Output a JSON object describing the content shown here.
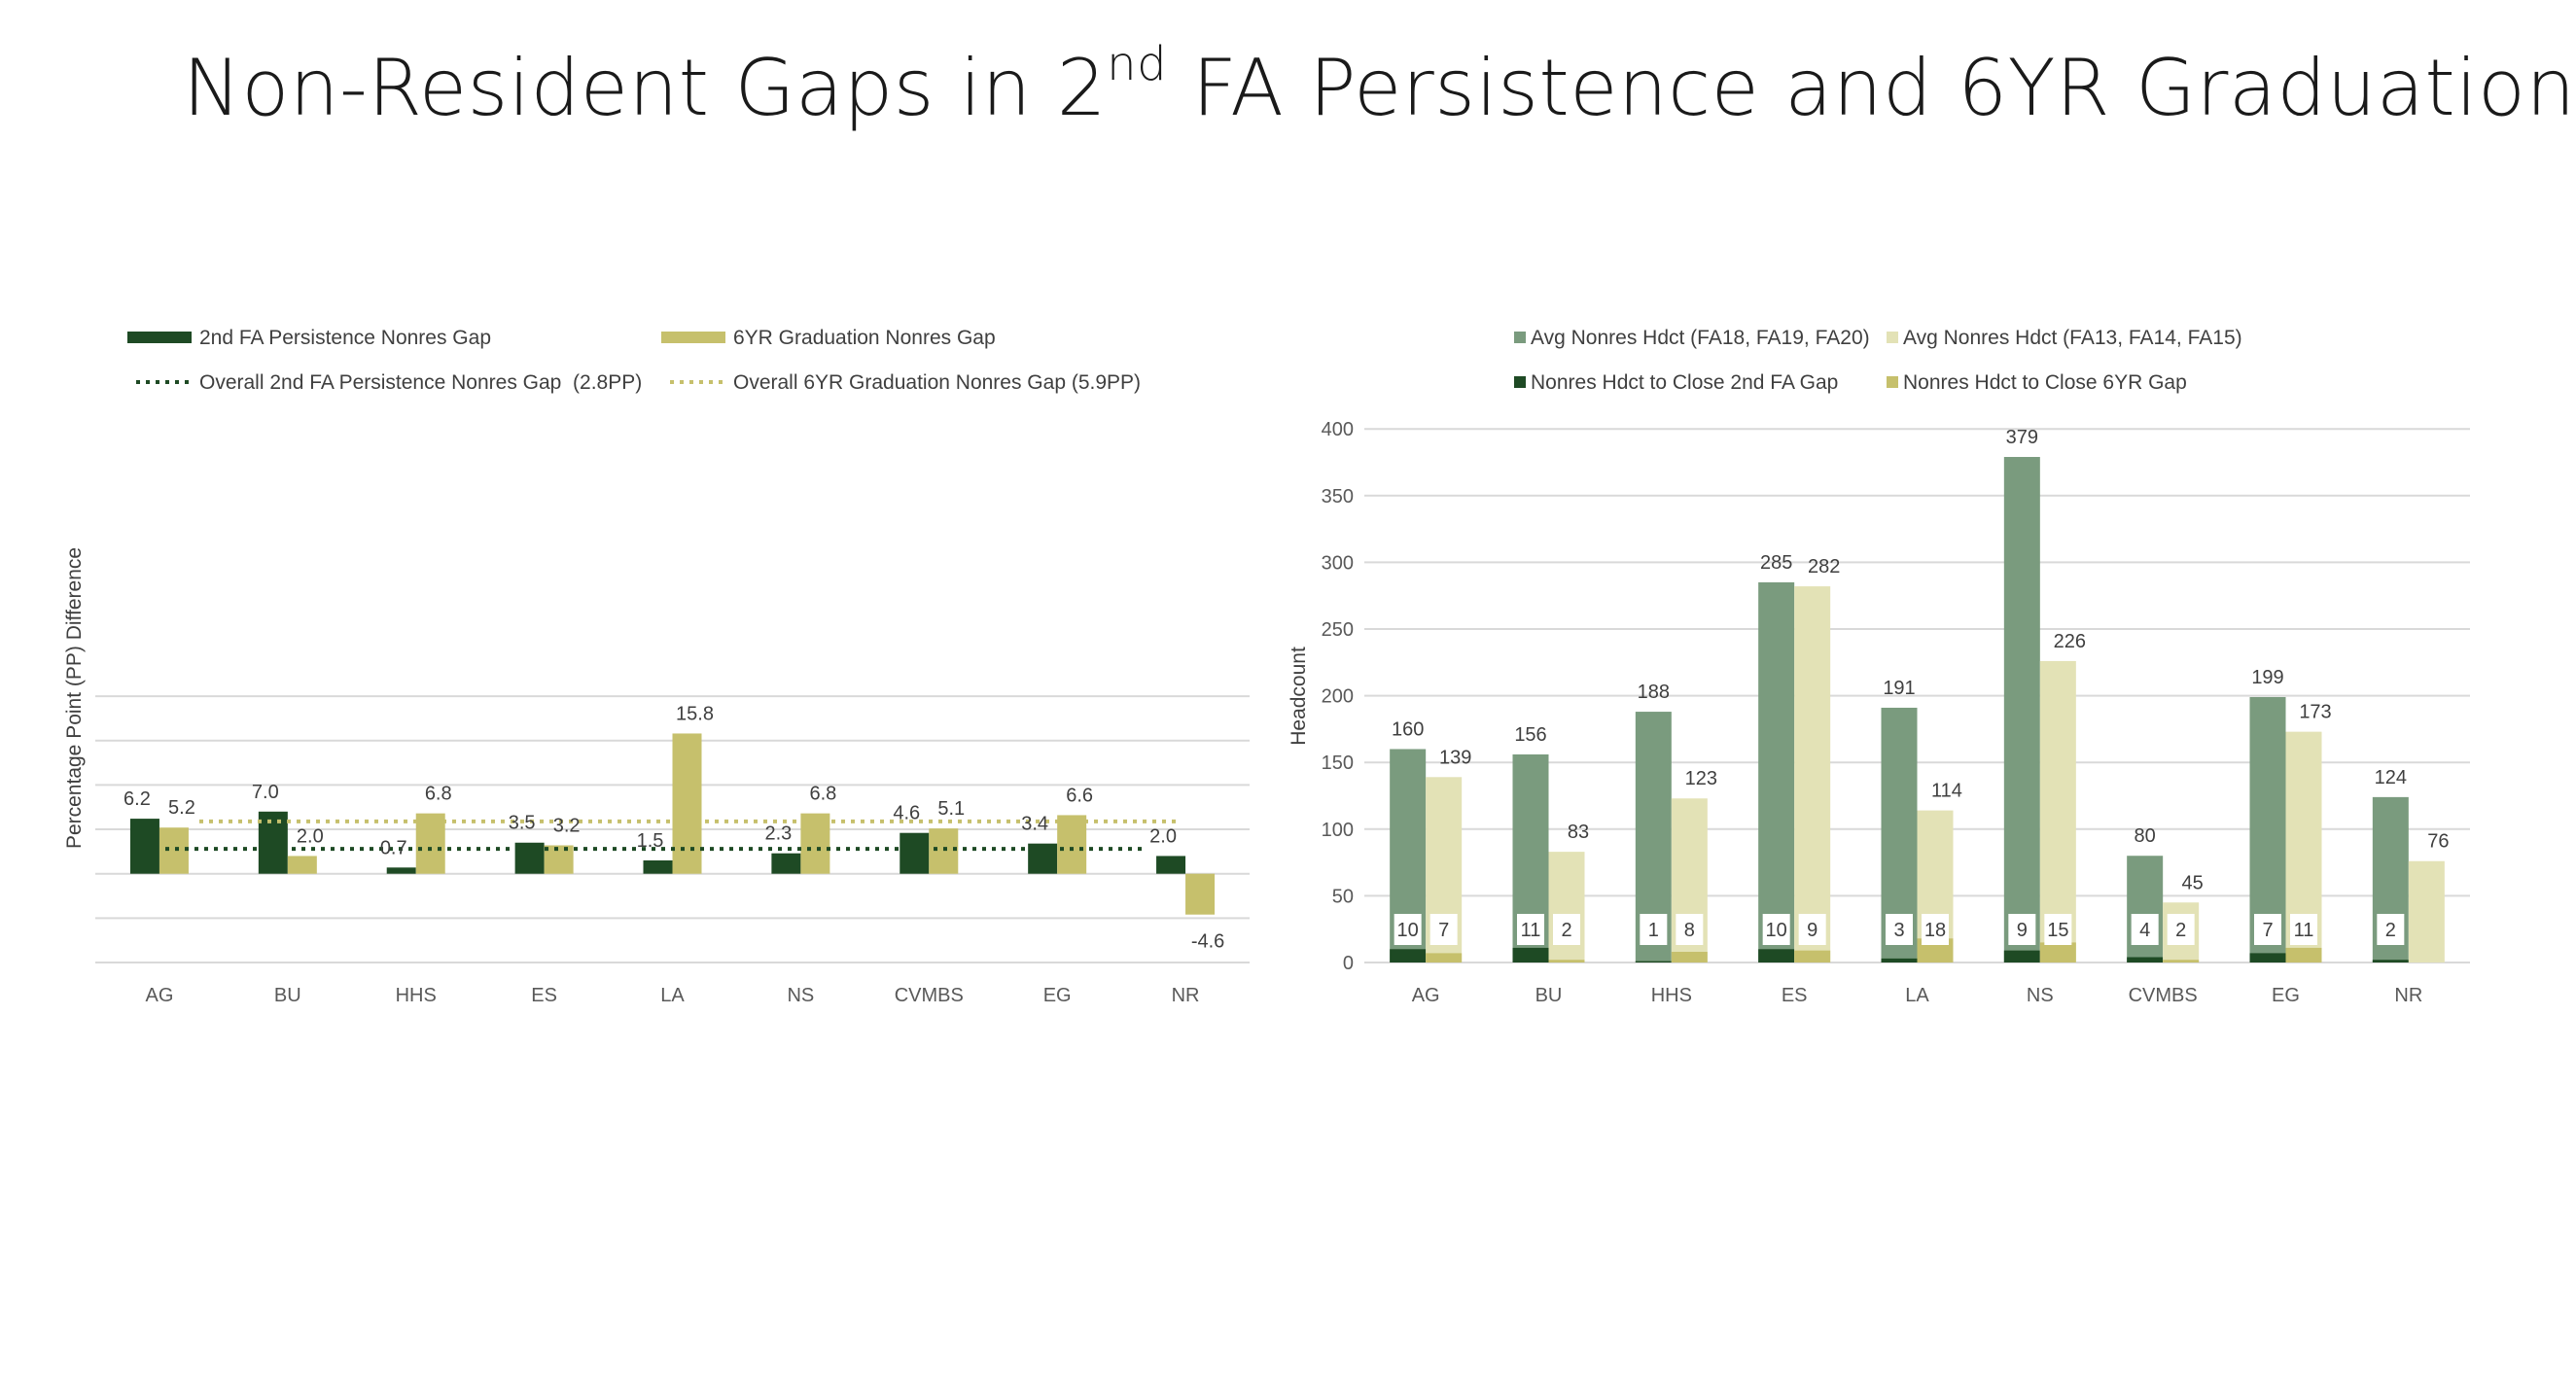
{
  "slide": {
    "title_pre": "Non-Resident Gaps in 2",
    "title_sup": "nd",
    "title_post": " FA Persistence and 6YR Graduation"
  },
  "chart_data": [
    {
      "type": "bar",
      "ylabel": "Percentage Point (PP) Difference",
      "xlabel": "",
      "categories": [
        "AG",
        "BU",
        "HHS",
        "ES",
        "LA",
        "NS",
        "CVMBS",
        "EG",
        "NR"
      ],
      "series": [
        {
          "name": "2nd FA Persistence Nonres Gap",
          "color": "#1e4a24",
          "values": [
            6.2,
            7.0,
            0.7,
            3.5,
            1.5,
            2.3,
            4.6,
            3.4,
            2.0
          ]
        },
        {
          "name": "6YR Graduation Nonres Gap",
          "color": "#c6c06c",
          "values": [
            5.2,
            2.0,
            6.8,
            3.2,
            15.8,
            6.8,
            5.1,
            6.6,
            -4.6
          ]
        }
      ],
      "reference_lines": [
        {
          "name": "Overall 2nd FA Persistence Nonres Gap  (2.8PP)",
          "value": 2.8,
          "color": "#1e4a24"
        },
        {
          "name": "Overall 6YR Graduation Nonres Gap (5.9PP)",
          "value": 5.9,
          "color": "#c6c06c"
        }
      ],
      "data_labels": [
        [
          "6.2",
          "7.0",
          "0.7",
          "3.5",
          "1.5",
          "2.3",
          "4.6",
          "3.4",
          "2.0"
        ],
        [
          "5.2",
          "2.0",
          "6.8",
          "3.2",
          "15.8",
          "6.8",
          "5.1",
          "6.6",
          "-4.6"
        ]
      ],
      "ylim": [
        -10,
        20
      ],
      "grid": true,
      "legend_position": "top"
    },
    {
      "type": "bar",
      "ylabel": "Headcount",
      "xlabel": "",
      "categories": [
        "AG",
        "BU",
        "HHS",
        "ES",
        "LA",
        "NS",
        "CVMBS",
        "EG",
        "NR"
      ],
      "series": [
        {
          "name": "Avg Nonres Hdct (FA18, FA19, FA20)",
          "color": "#7a9b7e",
          "values": [
            160,
            156,
            188,
            285,
            191,
            379,
            80,
            199,
            124
          ]
        },
        {
          "name": "Avg Nonres Hdct (FA13, FA14, FA15)",
          "color": "#e3e2b6",
          "values": [
            139,
            83,
            123,
            282,
            114,
            226,
            45,
            173,
            76
          ]
        },
        {
          "name": "Nonres Hdct to Close 2nd FA Gap",
          "color": "#1e4a24",
          "values": [
            10,
            11,
            1,
            10,
            3,
            9,
            4,
            7,
            2
          ]
        },
        {
          "name": "Nonres Hdct to Close 6YR Gap",
          "color": "#c6c06c",
          "values": [
            7,
            2,
            8,
            9,
            18,
            15,
            2,
            11,
            0
          ]
        }
      ],
      "total_labels": [
        [
          "160",
          "156",
          "188",
          "285",
          "191",
          "379",
          "80",
          "199",
          "124"
        ],
        [
          "139",
          "83",
          "123",
          "282",
          "114",
          "226",
          "45",
          "173",
          "76"
        ]
      ],
      "close_labels": [
        [
          "10",
          "11",
          "1",
          "10",
          "3",
          "9",
          "4",
          "7",
          "2"
        ],
        [
          "7",
          "2",
          "8",
          "9",
          "18",
          "15",
          "2",
          "11",
          ""
        ]
      ],
      "yticks": [
        "0",
        "50",
        "100",
        "150",
        "200",
        "250",
        "300",
        "350",
        "400"
      ],
      "ylim": [
        0,
        400
      ],
      "grid": true,
      "legend_position": "top"
    }
  ]
}
